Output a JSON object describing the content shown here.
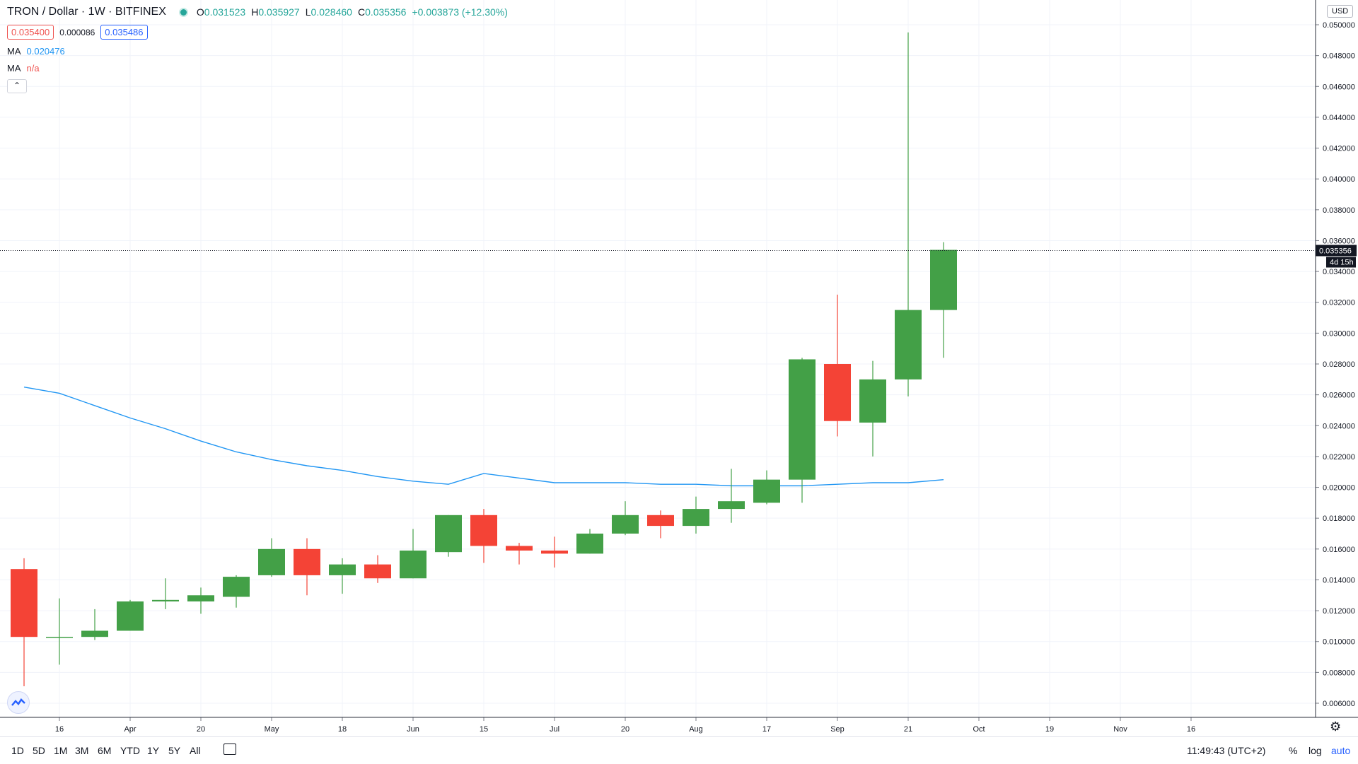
{
  "header": {
    "title": "TRON / Dollar · 1W · BITFINEX",
    "ohlc": [
      {
        "k": "O",
        "v": "0.031523"
      },
      {
        "k": "H",
        "v": "0.035927"
      },
      {
        "k": "L",
        "v": "0.028460"
      },
      {
        "k": "C",
        "v": "0.035356"
      }
    ],
    "change": "+0.003873 (+12.30%)",
    "bid": "0.035400",
    "spread": "0.000086",
    "ask": "0.035486",
    "ma1_label": "MA",
    "ma1_value": "0.020476",
    "ma2_label": "MA",
    "ma2_value": "n/a",
    "collapse_glyph": "⌃"
  },
  "currency_label": "USD",
  "price_tag": "0.035356",
  "countdown_tag": "4d 15h",
  "bottom_bar": {
    "timeframes": [
      "1D",
      "5D",
      "1M",
      "3M",
      "6M",
      "YTD",
      "1Y",
      "5Y",
      "All"
    ],
    "time": "11:49:43 (UTC+2)",
    "percent": "%",
    "log": "log",
    "auto": "auto"
  },
  "colors": {
    "up": "#43a047",
    "down": "#f44336",
    "ma": "#2196f3",
    "grid": "#f0f3fa"
  },
  "icons": [
    "eye-icon",
    "chevron-up-icon",
    "calendar-range-icon",
    "gear-icon",
    "tradingview-logo-icon"
  ],
  "chart_data": {
    "type": "candlestick",
    "x_tick_labels": [
      "16",
      "Apr",
      "20",
      "May",
      "18",
      "Jun",
      "15",
      "Jul",
      "20",
      "Aug",
      "17",
      "Sep",
      "21",
      "Oct",
      "19",
      "Nov",
      "16"
    ],
    "y_tick_labels": [
      "0.006000",
      "0.008000",
      "0.010000",
      "0.012000",
      "0.014000",
      "0.016000",
      "0.018000",
      "0.020000",
      "0.022000",
      "0.024000",
      "0.026000",
      "0.028000",
      "0.030000",
      "0.032000",
      "0.034000",
      "0.036000",
      "0.038000",
      "0.040000",
      "0.042000",
      "0.044000",
      "0.046000",
      "0.048000",
      "0.050000"
    ],
    "ylim": [
      0.0052,
      0.0505
    ],
    "candles": [
      {
        "week": 0,
        "o": 0.0147,
        "h": 0.0154,
        "l": 0.0071,
        "c": 0.0103
      },
      {
        "week": 1,
        "o": 0.0103,
        "h": 0.0128,
        "l": 0.0085,
        "c": 0.0103
      },
      {
        "week": 2,
        "o": 0.0103,
        "h": 0.0121,
        "l": 0.0101,
        "c": 0.0107
      },
      {
        "week": 3,
        "o": 0.0107,
        "h": 0.0127,
        "l": 0.0107,
        "c": 0.0126
      },
      {
        "week": 4,
        "o": 0.0126,
        "h": 0.0141,
        "l": 0.0121,
        "c": 0.0127
      },
      {
        "week": 5,
        "o": 0.0126,
        "h": 0.0135,
        "l": 0.0118,
        "c": 0.013
      },
      {
        "week": 6,
        "o": 0.0129,
        "h": 0.0143,
        "l": 0.0122,
        "c": 0.0142
      },
      {
        "week": 7,
        "o": 0.0143,
        "h": 0.0167,
        "l": 0.0142,
        "c": 0.016
      },
      {
        "week": 8,
        "o": 0.016,
        "h": 0.0167,
        "l": 0.013,
        "c": 0.0143
      },
      {
        "week": 9,
        "o": 0.0143,
        "h": 0.0154,
        "l": 0.0131,
        "c": 0.015
      },
      {
        "week": 10,
        "o": 0.015,
        "h": 0.0156,
        "l": 0.0138,
        "c": 0.0141
      },
      {
        "week": 11,
        "o": 0.0141,
        "h": 0.0173,
        "l": 0.0141,
        "c": 0.0159
      },
      {
        "week": 12,
        "o": 0.0158,
        "h": 0.0182,
        "l": 0.0155,
        "c": 0.0182
      },
      {
        "week": 13,
        "o": 0.0182,
        "h": 0.0186,
        "l": 0.0151,
        "c": 0.0162
      },
      {
        "week": 14,
        "o": 0.0162,
        "h": 0.0164,
        "l": 0.015,
        "c": 0.0159
      },
      {
        "week": 15,
        "o": 0.0159,
        "h": 0.0168,
        "l": 0.0148,
        "c": 0.0157
      },
      {
        "week": 16,
        "o": 0.0157,
        "h": 0.0173,
        "l": 0.0157,
        "c": 0.017
      },
      {
        "week": 17,
        "o": 0.017,
        "h": 0.0191,
        "l": 0.0169,
        "c": 0.0182
      },
      {
        "week": 18,
        "o": 0.0182,
        "h": 0.0185,
        "l": 0.0167,
        "c": 0.0175
      },
      {
        "week": 19,
        "o": 0.0175,
        "h": 0.0194,
        "l": 0.017,
        "c": 0.0186
      },
      {
        "week": 20,
        "o": 0.0186,
        "h": 0.0212,
        "l": 0.0177,
        "c": 0.0191
      },
      {
        "week": 21,
        "o": 0.019,
        "h": 0.0211,
        "l": 0.0189,
        "c": 0.0205
      },
      {
        "week": 22,
        "o": 0.0205,
        "h": 0.0284,
        "l": 0.019,
        "c": 0.0283
      },
      {
        "week": 23,
        "o": 0.028,
        "h": 0.0325,
        "l": 0.0233,
        "c": 0.0243
      },
      {
        "week": 24,
        "o": 0.0242,
        "h": 0.0282,
        "l": 0.022,
        "c": 0.027
      },
      {
        "week": 25,
        "o": 0.027,
        "h": 0.0495,
        "l": 0.0259,
        "c": 0.0315
      },
      {
        "week": 26,
        "o": 0.0315,
        "h": 0.0359,
        "l": 0.0284,
        "c": 0.0354
      }
    ],
    "ma_series": [
      0.0265,
      0.0261,
      0.0253,
      0.0245,
      0.0238,
      0.023,
      0.0223,
      0.0218,
      0.0214,
      0.0211,
      0.0207,
      0.0204,
      0.0202,
      0.0209,
      0.0206,
      0.0203,
      0.0203,
      0.0203,
      0.0202,
      0.0202,
      0.0201,
      0.0201,
      0.0201,
      0.0202,
      0.0203,
      0.0203,
      0.0205
    ],
    "ma_series_note_unused": null,
    "last_price": 0.035356
  }
}
